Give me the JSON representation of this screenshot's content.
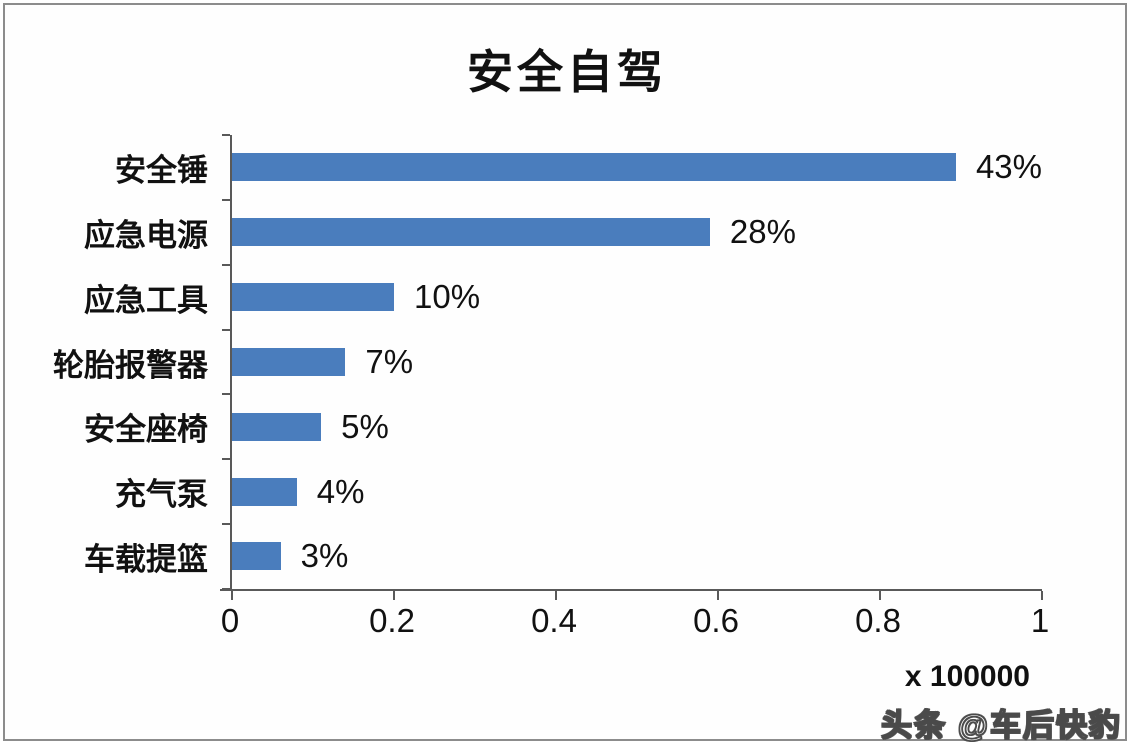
{
  "title": "安全自驾",
  "chart_data": {
    "type": "bar",
    "orientation": "horizontal",
    "title": "安全自驾",
    "categories": [
      "安全锤",
      "应急电源",
      "应急工具",
      "轮胎报警器",
      "安全座椅",
      "充气泵",
      "车载提篮"
    ],
    "values": [
      0.91,
      0.59,
      0.2,
      0.14,
      0.11,
      0.08,
      0.06
    ],
    "data_labels": [
      "43%",
      "28%",
      "10%",
      "7%",
      "5%",
      "4%",
      "3%"
    ],
    "xlim": [
      0,
      1
    ],
    "x_tick_values": [
      0,
      0.2,
      0.4,
      0.6,
      0.8,
      1
    ],
    "x_tick_labels": [
      "0",
      "0.2",
      "0.4",
      "0.6",
      "0.8",
      "1"
    ],
    "x_axis_note": "x 100000",
    "bar_color": "#4a7dbd",
    "axis_color": "#595959",
    "grid": false,
    "legend": "none"
  },
  "watermark": {
    "text": "头条 @车后快豹"
  }
}
